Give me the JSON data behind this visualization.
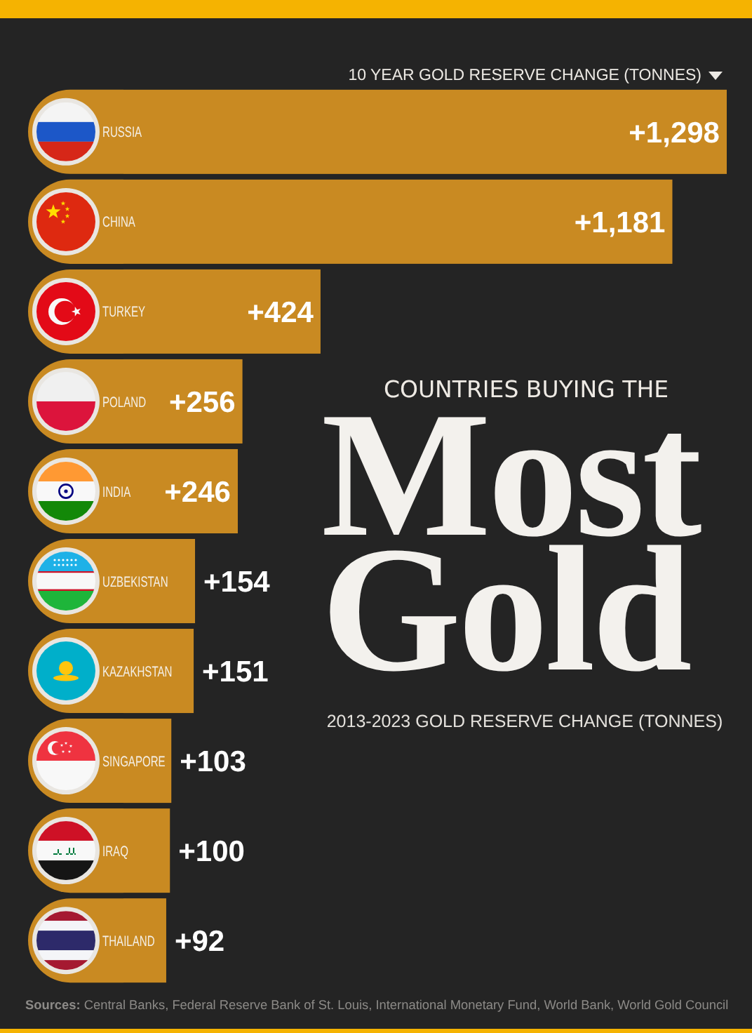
{
  "chart_data": {
    "type": "bar",
    "orientation": "horizontal",
    "title": "COUNTRIES BUYING THE\nMost\nGold",
    "subtitle": "2013-2023 GOLD RESERVE CHANGE (TONNES)",
    "xlabel": "10 YEAR GOLD RESERVE CHANGE (TONNES)",
    "categories": [
      "RUSSIA",
      "CHINA",
      "TURKEY",
      "POLAND",
      "INDIA",
      "UZBEKISTAN",
      "KAZAKHSTAN",
      "SINGAPORE",
      "IRAQ",
      "THAILAND"
    ],
    "values": [
      1298,
      1181,
      424,
      256,
      246,
      154,
      151,
      103,
      100,
      92
    ],
    "value_labels": [
      "+1,298",
      "+1,181",
      "+424",
      "+256",
      "+246",
      "+154",
      "+151",
      "+103",
      "+100",
      "+92"
    ],
    "color": "#c98a22",
    "annotations": [
      "Sources: Central Banks, Federal Reserve Bank of St. Louis, International Monetary Fund, World Bank, World Gold Council"
    ]
  }
}
